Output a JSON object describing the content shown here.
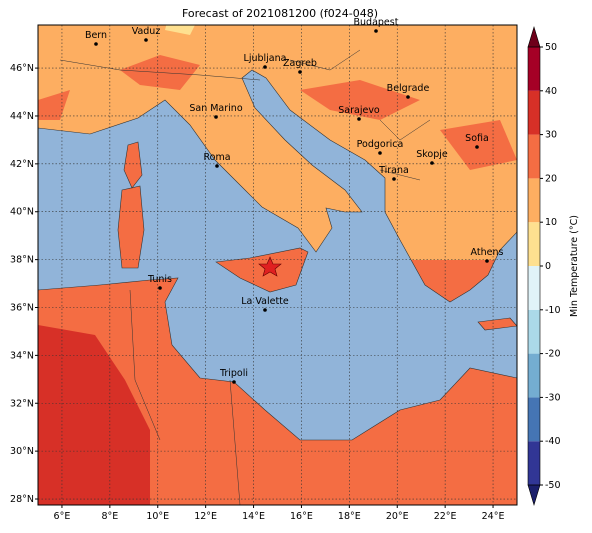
{
  "title": "Forecast of 2021081200 (f024-048)",
  "map": {
    "lonlim": [
      5,
      25
    ],
    "latlim": [
      27.75,
      47.8
    ],
    "lonticks": [
      {
        "value": 6,
        "label": "6°E"
      },
      {
        "value": 8,
        "label": "8°E"
      },
      {
        "value": 10,
        "label": "10°E"
      },
      {
        "value": 12,
        "label": "12°E"
      },
      {
        "value": 14,
        "label": "14°E"
      },
      {
        "value": 16,
        "label": "16°E"
      },
      {
        "value": 18,
        "label": "18°E"
      },
      {
        "value": 20,
        "label": "20°E"
      },
      {
        "value": 22,
        "label": "22°E"
      },
      {
        "value": 24,
        "label": "24°E"
      }
    ],
    "latticks": [
      {
        "value": 28,
        "label": "28°N"
      },
      {
        "value": 30,
        "label": "30°N"
      },
      {
        "value": 32,
        "label": "32°N"
      },
      {
        "value": 34,
        "label": "34°N"
      },
      {
        "value": 36,
        "label": "36°N"
      },
      {
        "value": 38,
        "label": "38°N"
      },
      {
        "value": 40,
        "label": "40°N"
      },
      {
        "value": 42,
        "label": "42°N"
      },
      {
        "value": 44,
        "label": "44°N"
      },
      {
        "value": 46,
        "label": "46°N"
      }
    ],
    "grid": true,
    "cities": [
      "Bern",
      "Vaduz",
      "Budapest",
      "Ljubljana",
      "Zagreb",
      "Belgrade",
      "San Marino",
      "Sarajevo",
      "Sofia",
      "Podgorica",
      "Skopje",
      "Roma",
      "Tirana",
      "Athens",
      "Tunis",
      "La Valette",
      "Tripoli"
    ]
  },
  "colorbar": {
    "label": "Min Temperature (°C)",
    "lim": [
      -50,
      50
    ],
    "ticks": [
      -50,
      -40,
      -30,
      -20,
      -10,
      0,
      10,
      20,
      30,
      40,
      50
    ],
    "colors": [
      "#313695",
      "#4575b4",
      "#74add1",
      "#abd9e9",
      "#e0f3f8",
      "#fee090",
      "#fdae61",
      "#f46d43",
      "#d73027",
      "#a50026"
    ],
    "extend_colors": [
      "#1b1f6b",
      "#6e001a"
    ]
  }
}
